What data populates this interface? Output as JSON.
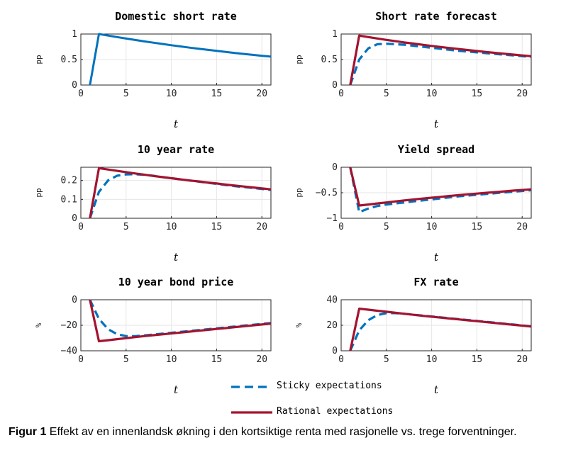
{
  "colors": {
    "sticky": "#0072BD",
    "rational": "#A2142F",
    "axis": "#262626",
    "grid": "#e6e6e6"
  },
  "legend": {
    "sticky": "Sticky expectations",
    "rational": "Rational expectations"
  },
  "caption": {
    "label": "Figur 1",
    "text": "Effekt av en innenlandsk økning i den kortsiktige renta med rasjonelle vs. trege forventninger."
  },
  "chart_data": [
    {
      "type": "line",
      "title": "Domestic short rate",
      "xlabel": "t",
      "ylabel": "pp",
      "xlim": [
        0,
        21
      ],
      "ylim": [
        0,
        1
      ],
      "xticks": [
        0,
        5,
        10,
        15,
        20
      ],
      "yticks": [
        0,
        0.5,
        1
      ],
      "ytick_labels": [
        "0",
        "0.5",
        "1"
      ],
      "series": [
        {
          "name": "Rational expectations",
          "style": "rational-blue",
          "x": [
            1,
            2,
            3,
            4,
            5,
            6,
            7,
            8,
            9,
            10,
            11,
            12,
            13,
            14,
            15,
            16,
            17,
            18,
            19,
            20,
            21
          ],
          "y": [
            0,
            1.0,
            0.97,
            0.94,
            0.911,
            0.883,
            0.856,
            0.83,
            0.805,
            0.781,
            0.757,
            0.734,
            0.712,
            0.69,
            0.669,
            0.649,
            0.629,
            0.61,
            0.592,
            0.574,
            0.557
          ]
        }
      ]
    },
    {
      "type": "line",
      "title": "Short rate forecast",
      "xlabel": "t",
      "ylabel": "pp",
      "xlim": [
        0,
        21
      ],
      "ylim": [
        0,
        1
      ],
      "xticks": [
        0,
        5,
        10,
        15,
        20
      ],
      "yticks": [
        0,
        0.5,
        1
      ],
      "ytick_labels": [
        "0",
        "0.5",
        "1"
      ],
      "series": [
        {
          "name": "Sticky expectations",
          "x": [
            1,
            2,
            3,
            4,
            5,
            6,
            7,
            8,
            9,
            10,
            11,
            12,
            13,
            14,
            15,
            16,
            17,
            18,
            19,
            20,
            21
          ],
          "y": [
            0,
            0.5,
            0.72,
            0.8,
            0.81,
            0.8,
            0.79,
            0.77,
            0.75,
            0.73,
            0.71,
            0.69,
            0.67,
            0.655,
            0.64,
            0.625,
            0.61,
            0.595,
            0.58,
            0.565,
            0.55
          ]
        },
        {
          "name": "Rational expectations",
          "x": [
            1,
            2,
            3,
            4,
            5,
            6,
            7,
            8,
            9,
            10,
            11,
            12,
            13,
            14,
            15,
            16,
            17,
            18,
            19,
            20,
            21
          ],
          "y": [
            0,
            0.97,
            0.94,
            0.912,
            0.885,
            0.86,
            0.835,
            0.812,
            0.789,
            0.767,
            0.746,
            0.725,
            0.705,
            0.686,
            0.667,
            0.649,
            0.631,
            0.614,
            0.597,
            0.581,
            0.565
          ]
        }
      ]
    },
    {
      "type": "line",
      "title": "10 year rate",
      "xlabel": "t",
      "ylabel": "pp",
      "xlim": [
        0,
        21
      ],
      "ylim": [
        0,
        0.27
      ],
      "xticks": [
        0,
        5,
        10,
        15,
        20
      ],
      "yticks": [
        0,
        0.1,
        0.2
      ],
      "ytick_labels": [
        "0",
        "0.1",
        "0.2"
      ],
      "series": [
        {
          "name": "Sticky expectations",
          "x": [
            1,
            2,
            3,
            4,
            5,
            6,
            7,
            8,
            9,
            10,
            11,
            12,
            13,
            14,
            15,
            16,
            17,
            18,
            19,
            20,
            21
          ],
          "y": [
            0,
            0.14,
            0.2,
            0.225,
            0.232,
            0.233,
            0.23,
            0.225,
            0.218,
            0.212,
            0.206,
            0.2,
            0.194,
            0.188,
            0.182,
            0.176,
            0.17,
            0.165,
            0.16,
            0.155,
            0.15
          ]
        },
        {
          "name": "Rational expectations",
          "x": [
            1,
            2,
            3,
            4,
            5,
            6,
            7,
            8,
            9,
            10,
            11,
            12,
            13,
            14,
            15,
            16,
            17,
            18,
            19,
            20,
            21
          ],
          "y": [
            0,
            0.265,
            0.258,
            0.251,
            0.244,
            0.237,
            0.231,
            0.224,
            0.218,
            0.212,
            0.206,
            0.2,
            0.195,
            0.189,
            0.184,
            0.178,
            0.173,
            0.168,
            0.163,
            0.158,
            0.153
          ]
        }
      ]
    },
    {
      "type": "line",
      "title": "Yield spread",
      "xlabel": "t",
      "ylabel": "pp",
      "xlim": [
        0,
        21
      ],
      "ylim": [
        -1,
        0
      ],
      "xticks": [
        0,
        5,
        10,
        15,
        20
      ],
      "yticks": [
        -1,
        -0.5,
        0
      ],
      "ytick_labels": [
        "−1",
        "−0.5",
        "0"
      ],
      "series": [
        {
          "name": "Sticky expectations",
          "x": [
            1,
            2,
            3,
            4,
            5,
            6,
            7,
            8,
            9,
            10,
            11,
            12,
            13,
            14,
            15,
            16,
            17,
            18,
            19,
            20,
            21
          ],
          "y": [
            0,
            -0.88,
            -0.81,
            -0.76,
            -0.73,
            -0.71,
            -0.69,
            -0.67,
            -0.65,
            -0.63,
            -0.61,
            -0.59,
            -0.57,
            -0.555,
            -0.54,
            -0.525,
            -0.51,
            -0.495,
            -0.48,
            -0.465,
            -0.45
          ]
        },
        {
          "name": "Rational expectations",
          "x": [
            1,
            2,
            3,
            4,
            5,
            6,
            7,
            8,
            9,
            10,
            11,
            12,
            13,
            14,
            15,
            16,
            17,
            18,
            19,
            20,
            21
          ],
          "y": [
            0,
            -0.75,
            -0.73,
            -0.71,
            -0.69,
            -0.67,
            -0.65,
            -0.632,
            -0.614,
            -0.597,
            -0.58,
            -0.563,
            -0.547,
            -0.531,
            -0.516,
            -0.501,
            -0.487,
            -0.473,
            -0.459,
            -0.446,
            -0.433
          ]
        }
      ]
    },
    {
      "type": "line",
      "title": "10 year bond price",
      "xlabel": "t",
      "ylabel": "%",
      "xlim": [
        0,
        21
      ],
      "ylim": [
        -40,
        0
      ],
      "xticks": [
        0,
        5,
        10,
        15,
        20
      ],
      "yticks": [
        -40,
        -20,
        0
      ],
      "ytick_labels": [
        "−40",
        "−20",
        "0"
      ],
      "series": [
        {
          "name": "Sticky expectations",
          "x": [
            1,
            2,
            3,
            4,
            5,
            6,
            7,
            8,
            9,
            10,
            11,
            12,
            13,
            14,
            15,
            16,
            17,
            18,
            19,
            20,
            21
          ],
          "y": [
            0,
            -15,
            -23,
            -27,
            -28.5,
            -28.5,
            -28,
            -27.3,
            -26.6,
            -25.9,
            -25.2,
            -24.5,
            -23.8,
            -23.1,
            -22.4,
            -21.7,
            -21.0,
            -20.3,
            -19.6,
            -18.9,
            -18.3
          ]
        },
        {
          "name": "Rational expectations",
          "x": [
            1,
            2,
            3,
            4,
            5,
            6,
            7,
            8,
            9,
            10,
            11,
            12,
            13,
            14,
            15,
            16,
            17,
            18,
            19,
            20,
            21
          ],
          "y": [
            0,
            -32.5,
            -31.7,
            -30.9,
            -30.1,
            -29.3,
            -28.5,
            -27.8,
            -27.1,
            -26.4,
            -25.7,
            -25.0,
            -24.3,
            -23.6,
            -22.9,
            -22.2,
            -21.5,
            -20.8,
            -20.1,
            -19.4,
            -18.7
          ]
        }
      ]
    },
    {
      "type": "line",
      "title": "FX rate",
      "xlabel": "t",
      "ylabel": "%",
      "xlim": [
        0,
        21
      ],
      "ylim": [
        0,
        40
      ],
      "xticks": [
        0,
        5,
        10,
        15,
        20
      ],
      "yticks": [
        0,
        20,
        40
      ],
      "ytick_labels": [
        "0",
        "20",
        "40"
      ],
      "series": [
        {
          "name": "Sticky expectations",
          "x": [
            1,
            2,
            3,
            4,
            5,
            6,
            7,
            8,
            9,
            10,
            11,
            12,
            13,
            14,
            15,
            16,
            17,
            18,
            19,
            20,
            21
          ],
          "y": [
            0,
            16,
            24,
            28,
            29.5,
            29.5,
            29,
            28.3,
            27.6,
            26.9,
            26.2,
            25.5,
            24.8,
            24.1,
            23.4,
            22.7,
            22.0,
            21.3,
            20.6,
            19.9,
            19.2
          ]
        },
        {
          "name": "Rational expectations",
          "x": [
            1,
            2,
            3,
            4,
            5,
            6,
            7,
            8,
            9,
            10,
            11,
            12,
            13,
            14,
            15,
            16,
            17,
            18,
            19,
            20,
            21
          ],
          "y": [
            0,
            33,
            32.2,
            31.4,
            30.6,
            29.8,
            29.0,
            28.2,
            27.4,
            26.7,
            26.0,
            25.3,
            24.6,
            23.9,
            23.2,
            22.5,
            21.8,
            21.1,
            20.4,
            19.7,
            19.0
          ]
        }
      ]
    }
  ]
}
